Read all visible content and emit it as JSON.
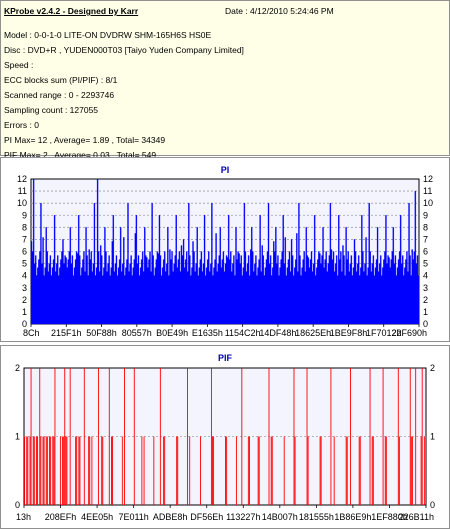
{
  "info": {
    "title": "KProbe v2.4.2 - Designed by Karr",
    "date": "Date : 4/12/2010 5:24:46 PM",
    "model": "Model : 0-0-1-0 LITE-ON DVDRW SHM-165H6S HS0E",
    "disc": "Disc : DVD+R , YUDEN000T03 [Taiyo Yuden Company Limited]",
    "speed": "Speed :",
    "ecc": "ECC blocks sum (PI/PIF) : 8/1",
    "scanned": "Scanned range : 0 - 2293746",
    "sampling": "Sampling count : 127055",
    "errors": "Errors : 0",
    "pi_summary": "PI Max= 12 , Average= 1.89 , Total= 34349",
    "pif_summary": "PIF Max= 2 , Average= 0.03 , Total= 549"
  },
  "colors": {
    "pi": "#0000ff",
    "pif": "#ff0000",
    "plot_bg": "#f4f4ff",
    "info_bg": "#ffffe8"
  },
  "chart_data": [
    {
      "type": "bar",
      "title": "PI",
      "ylim": [
        0,
        12
      ],
      "y_ticks": [
        "0",
        "1",
        "2",
        "3",
        "4",
        "5",
        "6",
        "7",
        "8",
        "9",
        "10",
        "11",
        "12"
      ],
      "x_tick_labels": [
        "8Ch",
        "215F1h",
        "50F88h",
        "80557h",
        "B0E49h",
        "E1635h",
        "1154C2h",
        "14DF48h",
        "18625Eh",
        "1BE9F8h",
        "1F7012h",
        "22F690h"
      ],
      "baseline_range": [
        4,
        6
      ],
      "bin_count": 370,
      "spikes": [
        [
          2,
          12
        ],
        [
          9,
          10
        ],
        [
          14,
          8
        ],
        [
          22,
          9
        ],
        [
          30,
          7
        ],
        [
          37,
          8
        ],
        [
          45,
          9
        ],
        [
          52,
          8
        ],
        [
          60,
          10
        ],
        [
          63,
          12
        ],
        [
          70,
          8
        ],
        [
          78,
          9
        ],
        [
          85,
          8
        ],
        [
          92,
          10
        ],
        [
          100,
          9
        ],
        [
          108,
          8
        ],
        [
          115,
          10
        ],
        [
          122,
          9
        ],
        [
          130,
          8
        ],
        [
          138,
          9
        ],
        [
          145,
          7
        ],
        [
          150,
          10
        ],
        [
          158,
          8
        ],
        [
          165,
          9
        ],
        [
          172,
          10
        ],
        [
          180,
          8
        ],
        [
          188,
          9
        ],
        [
          195,
          8
        ],
        [
          203,
          10
        ],
        [
          210,
          8
        ],
        [
          218,
          9
        ],
        [
          226,
          10
        ],
        [
          233,
          8
        ],
        [
          240,
          9
        ],
        [
          248,
          7
        ],
        [
          255,
          10
        ],
        [
          262,
          8
        ],
        [
          270,
          9
        ],
        [
          278,
          8
        ],
        [
          285,
          10
        ],
        [
          293,
          9
        ],
        [
          300,
          8
        ],
        [
          308,
          7
        ],
        [
          315,
          9
        ],
        [
          322,
          10
        ],
        [
          330,
          8
        ],
        [
          338,
          9
        ],
        [
          345,
          8
        ],
        [
          352,
          9
        ],
        [
          360,
          10
        ],
        [
          366,
          11
        ]
      ]
    },
    {
      "type": "bar",
      "title": "PIF",
      "ylim": [
        0,
        2
      ],
      "y_ticks": [
        "0",
        "1",
        "2"
      ],
      "x_tick_labels": [
        "13h",
        "208EFh",
        "4EE05h",
        "7E011h",
        "ADBE8h",
        "DF56Eh",
        "113227h",
        "14B007h",
        "181555h",
        "1B86E9h",
        "1EF880h",
        "226B11h"
      ],
      "bin_count": 370,
      "ones": [
        [
          0,
          28
        ],
        [
          33,
          40
        ],
        [
          46,
          52
        ],
        [
          58,
          62
        ],
        [
          70,
          72
        ],
        [
          80,
          82
        ],
        [
          90,
          92
        ],
        [
          100,
          101
        ],
        [
          108,
          110
        ],
        [
          118,
          119
        ],
        [
          128,
          130
        ],
        [
          140,
          141
        ],
        [
          150,
          152
        ],
        [
          162,
          163
        ],
        [
          172,
          174
        ],
        [
          185,
          186
        ],
        [
          195,
          196
        ],
        [
          205,
          207
        ],
        [
          215,
          216
        ],
        [
          226,
          228
        ],
        [
          238,
          239
        ],
        [
          248,
          250
        ],
        [
          260,
          261
        ],
        [
          272,
          274
        ],
        [
          285,
          286
        ],
        [
          296,
          298
        ],
        [
          308,
          309
        ],
        [
          320,
          322
        ],
        [
          332,
          333
        ],
        [
          344,
          346
        ],
        [
          355,
          357
        ],
        [
          364,
          368
        ]
      ],
      "twos": [
        6,
        14,
        28,
        37,
        42,
        55,
        68,
        78,
        92,
        101,
        125,
        150,
        172,
        200,
        225,
        248,
        260,
        282,
        300,
        318,
        330,
        344,
        355,
        360,
        366
      ]
    }
  ]
}
